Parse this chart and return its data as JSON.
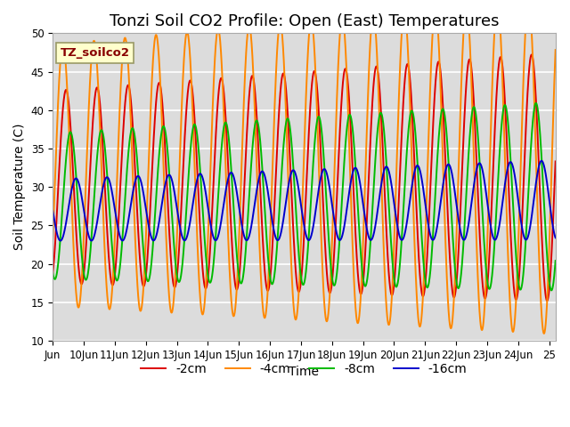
{
  "title": "Tonzi Soil CO2 Profile: Open (East) Temperatures",
  "xlabel": "Time",
  "ylabel": "Soil Temperature (C)",
  "ylim": [
    10,
    50
  ],
  "xlim_start": 9.0,
  "xlim_end": 25.2,
  "background_color": "#dcdcdc",
  "grid_color": "white",
  "series": [
    {
      "label": "-2cm",
      "color": "#dd0000",
      "amplitude": 12.5,
      "mean": 30.0,
      "phase_shift": 0.18
    },
    {
      "label": "-4cm",
      "color": "#ff8800",
      "amplitude": 17.0,
      "mean": 31.5,
      "phase_shift": 0.08
    },
    {
      "label": "-8cm",
      "color": "#00bb00",
      "amplitude": 9.5,
      "mean": 27.5,
      "phase_shift": 0.32
    },
    {
      "label": "-16cm",
      "color": "#0000cc",
      "amplitude": 4.0,
      "mean": 27.0,
      "phase_shift": 0.5
    }
  ],
  "xtick_positions": [
    9,
    10,
    11,
    12,
    13,
    14,
    15,
    16,
    17,
    18,
    19,
    20,
    21,
    22,
    23,
    24,
    25
  ],
  "xtick_labels": [
    "Jun",
    "10Jun",
    "11Jun",
    "12Jun",
    "13Jun",
    "14Jun",
    "15Jun",
    "16Jun",
    "17Jun",
    "18Jun",
    "19Jun",
    "20Jun",
    "21Jun",
    "22Jun",
    "23Jun",
    "24Jun",
    "25"
  ],
  "ytick_positions": [
    10,
    15,
    20,
    25,
    30,
    35,
    40,
    45,
    50
  ],
  "legend_box_color": "#ffffcc",
  "legend_box_text": "TZ_soilco2",
  "legend_box_text_color": "#880000",
  "title_fontsize": 13,
  "axis_label_fontsize": 10,
  "tick_fontsize": 8.5,
  "legend_fontsize": 10,
  "linewidth": 1.4
}
